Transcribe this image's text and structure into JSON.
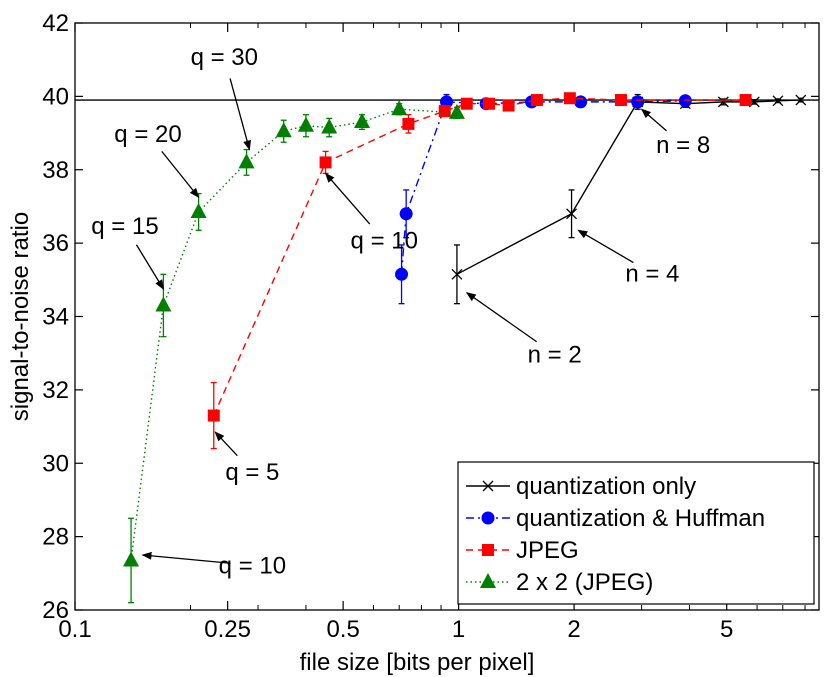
{
  "chart_data": {
    "type": "line",
    "xscale": "log",
    "xlabel": "file size [bits per pixel]",
    "ylabel": "signal-to-noise ratio",
    "xlim": [
      0.1,
      8.7
    ],
    "ylim": [
      26,
      42
    ],
    "xticks": [
      {
        "value": 0.1,
        "label": "0.1"
      },
      {
        "value": 0.25,
        "label": "0.25"
      },
      {
        "value": 0.5,
        "label": "0.5"
      },
      {
        "value": 1,
        "label": "1"
      },
      {
        "value": 2,
        "label": "2"
      },
      {
        "value": 5,
        "label": "5"
      }
    ],
    "yticks": [
      26,
      28,
      30,
      32,
      34,
      36,
      38,
      40,
      42
    ],
    "reference_line": 39.9,
    "series": [
      {
        "name": "quantization only",
        "color": "#000000",
        "marker": "x",
        "linestyle": "solid",
        "x": [
          0.99,
          1.97,
          2.93,
          3.9,
          4.9,
          5.9,
          6.8,
          7.8
        ],
        "y": [
          35.15,
          36.8,
          39.85,
          39.8,
          39.85,
          39.85,
          39.88,
          39.9
        ],
        "err": [
          0.8,
          0.65,
          0.2,
          0.1,
          0.08,
          0.06,
          0.05,
          0.05
        ]
      },
      {
        "name": "quantization & Huffman",
        "color": "#0000ff",
        "marker": "circle",
        "linestyle": "dashdot",
        "x": [
          0.71,
          0.73,
          0.93,
          1.18,
          1.55,
          2.08,
          2.93,
          3.9
        ],
        "y": [
          35.15,
          36.8,
          39.85,
          39.8,
          39.85,
          39.85,
          39.85,
          39.88
        ],
        "err": [
          0.8,
          0.65,
          0.2,
          0.1,
          0.08,
          0.06,
          0.05,
          0.05
        ]
      },
      {
        "name": "JPEG",
        "color": "#ff0000",
        "marker": "square",
        "linestyle": "dashed",
        "x": [
          0.23,
          0.45,
          0.74,
          0.92,
          1.05,
          1.2,
          1.35,
          1.6,
          1.95,
          2.65,
          5.6
        ],
        "y": [
          31.3,
          38.2,
          39.25,
          39.6,
          39.8,
          39.8,
          39.75,
          39.9,
          39.95,
          39.9,
          39.9
        ],
        "err": [
          0.9,
          0.3,
          0.25,
          0.15,
          0.1,
          0.08,
          0.08,
          0.06,
          0.05,
          0.05,
          0.04
        ]
      },
      {
        "name": "2 x 2 (JPEG)",
        "color": "#008000",
        "marker": "triangle",
        "linestyle": "dotted",
        "x": [
          0.14,
          0.17,
          0.21,
          0.28,
          0.35,
          0.4,
          0.46,
          0.56,
          0.7,
          0.99
        ],
        "y": [
          27.35,
          34.3,
          36.85,
          38.2,
          39.05,
          39.2,
          39.15,
          39.3,
          39.65,
          39.55
        ],
        "err": [
          1.15,
          0.85,
          0.5,
          0.35,
          0.3,
          0.3,
          0.25,
          0.2,
          0.15,
          0.15
        ]
      }
    ],
    "annotations": [
      {
        "text": "q = 30",
        "text_x": 0.245,
        "text_y": 40.85,
        "target_x": 0.285,
        "target_y": 38.55
      },
      {
        "text": "q = 20",
        "text_x": 0.155,
        "text_y": 38.75,
        "target_x": 0.21,
        "target_y": 37.25
      },
      {
        "text": "q = 15",
        "text_x": 0.135,
        "text_y": 36.25,
        "target_x": 0.17,
        "target_y": 34.75
      },
      {
        "text": "q = 10",
        "text_x": 0.64,
        "text_y": 35.85,
        "target_x": 0.45,
        "target_y": 37.9
      },
      {
        "text": "q = 5",
        "text_x": 0.29,
        "text_y": 29.55,
        "target_x": 0.232,
        "target_y": 30.85
      },
      {
        "text": "q = 10",
        "text_x": 0.29,
        "text_y": 27.0,
        "target_x": 0.15,
        "target_y": 27.5
      },
      {
        "text": "n = 8",
        "text_x": 3.85,
        "text_y": 38.45,
        "target_x": 3.0,
        "target_y": 39.65
      },
      {
        "text": "n = 4",
        "text_x": 3.2,
        "text_y": 34.95,
        "target_x": 2.05,
        "target_y": 36.35
      },
      {
        "text": "n = 2",
        "text_x": 1.78,
        "text_y": 32.75,
        "target_x": 1.05,
        "target_y": 34.65
      }
    ],
    "legend": {
      "placement": "bottom-right"
    }
  }
}
